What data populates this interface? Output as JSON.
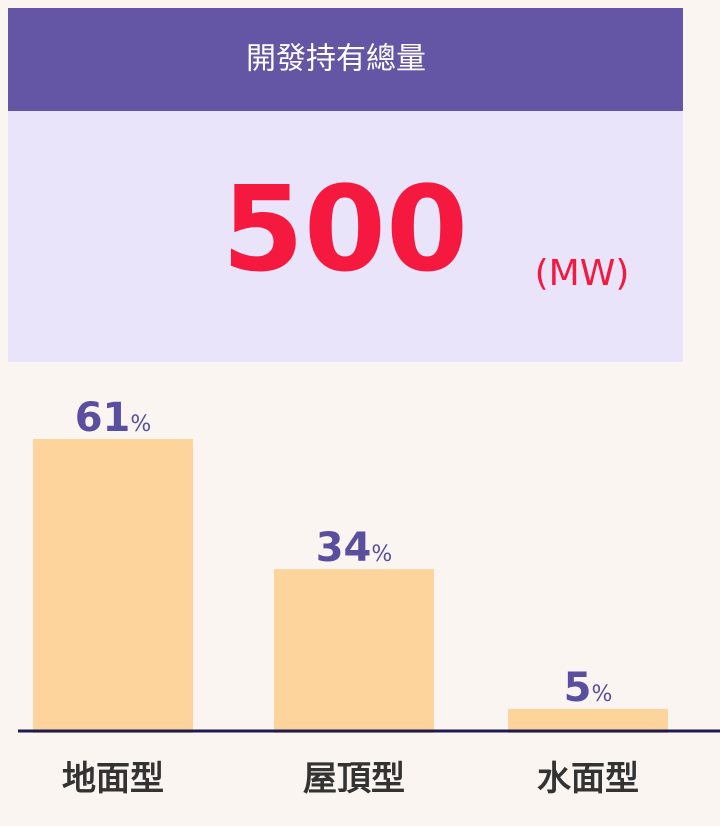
{
  "header": {
    "title": "開發持有總量"
  },
  "total": {
    "value": "500",
    "unit": "(MW)"
  },
  "chart_data": {
    "type": "bar",
    "categories": [
      "地面型",
      "屋頂型",
      "水面型"
    ],
    "values": [
      61,
      34,
      5
    ],
    "value_labels": [
      "61%",
      "34%",
      "5%"
    ],
    "color": "#fdd49c"
  }
}
